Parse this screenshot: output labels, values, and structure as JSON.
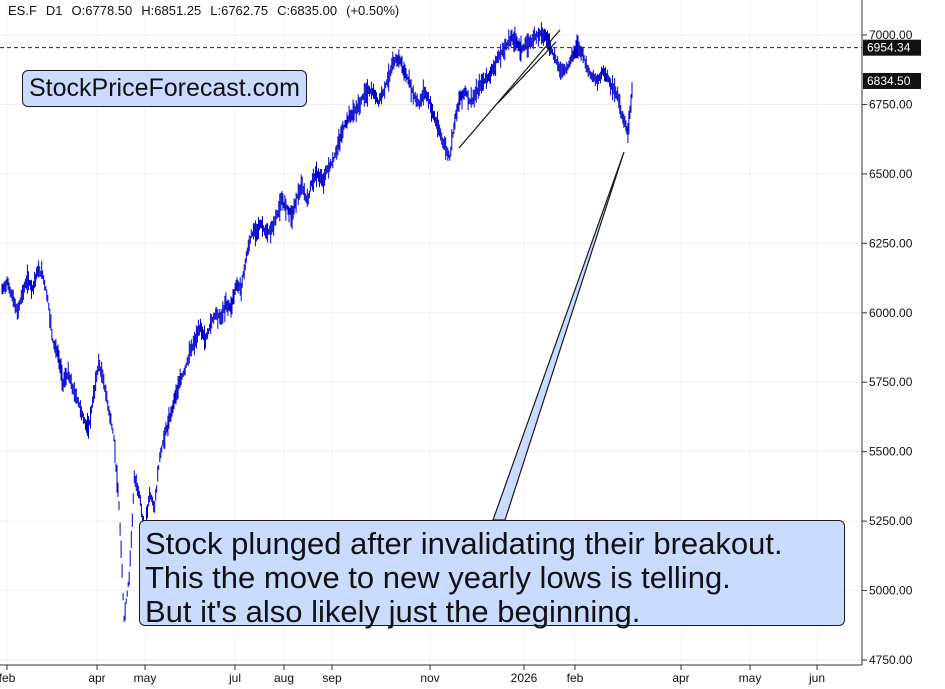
{
  "header": {
    "symbol": "ES.F",
    "timeframe": "D1",
    "open": "O:6778.50",
    "high": "H:6851.25",
    "low": "L:6762.75",
    "close": "C:6835.00",
    "change": "(+0.50%)"
  },
  "watermark": "StockPriceForecast.com",
  "annotation": {
    "lines": [
      "Stock plunged after invalidating their breakout.",
      "This the move to new yearly lows is telling.",
      "But it's also likely just the beginning."
    ]
  },
  "colors": {
    "series": "#0000cc",
    "callout_fill": "#c9dcff",
    "price_tag": "#111111"
  },
  "chart_data": {
    "type": "line",
    "ylim": [
      4750,
      7050
    ],
    "y_ticks": [
      {
        "value": 4750,
        "label": "4750.00"
      },
      {
        "value": 5000,
        "label": "5000.00"
      },
      {
        "value": 5250,
        "label": "5250.00"
      },
      {
        "value": 5500,
        "label": "5500.00"
      },
      {
        "value": 5750,
        "label": "5750.00"
      },
      {
        "value": 6000,
        "label": "6000.00"
      },
      {
        "value": 6250,
        "label": "6250.00"
      },
      {
        "value": 6500,
        "label": "6500.00"
      },
      {
        "value": 6750,
        "label": "6750.00"
      },
      {
        "value": 7000,
        "label": "7000.00"
      }
    ],
    "x_ticks": [
      "feb",
      "apr",
      "may",
      "jul",
      "aug",
      "sep",
      "nov",
      "2026",
      "feb",
      "apr",
      "may",
      "jun"
    ],
    "price_tags": [
      {
        "value": 6954.34,
        "label": "6954.34",
        "line": "dashed"
      },
      {
        "value": 6834.5,
        "label": "6834.50"
      }
    ],
    "grid": true,
    "series": [
      {
        "values": [
          6080,
          6110,
          6060,
          6000,
          6070,
          6120,
          6090,
          6150,
          6140,
          6050,
          5900,
          5850,
          5750,
          5780,
          5720,
          5680,
          5620,
          5580,
          5700,
          5820,
          5750,
          5650,
          5550,
          5300,
          4900,
          5050,
          5400,
          5350,
          5200,
          5350,
          5300,
          5480,
          5560,
          5620,
          5700,
          5750,
          5800,
          5860,
          5900,
          5950,
          5900,
          5960,
          6000,
          5980,
          6030,
          6020,
          6100,
          6090,
          6200,
          6280,
          6300,
          6320,
          6280,
          6300,
          6350,
          6400,
          6380,
          6350,
          6420,
          6450,
          6400,
          6480,
          6500,
          6470,
          6520,
          6540,
          6600,
          6660,
          6700,
          6720,
          6740,
          6780,
          6800,
          6790,
          6760,
          6800,
          6850,
          6900,
          6920,
          6870,
          6830,
          6780,
          6750,
          6800,
          6760,
          6700,
          6650,
          6600,
          6560,
          6700,
          6770,
          6800,
          6760,
          6780,
          6820,
          6840,
          6860,
          6900,
          6930,
          6960,
          6990,
          6980,
          6950,
          6960,
          6980,
          7000,
          7010,
          6990,
          6950,
          6900,
          6870,
          6880,
          6920,
          6960,
          6940,
          6880,
          6850,
          6830,
          6870,
          6850,
          6810,
          6780,
          6700,
          6650,
          6835
        ]
      }
    ]
  }
}
